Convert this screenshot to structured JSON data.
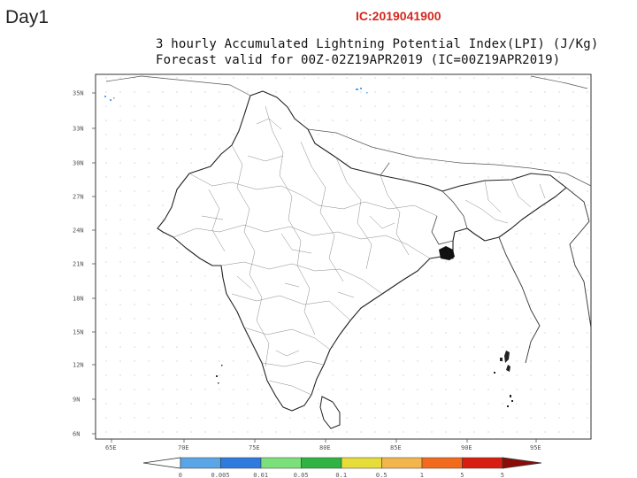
{
  "header": {
    "day": "Day1",
    "ic": "IC:2019041900"
  },
  "title": {
    "line1": "3 hourly Accumulated Lightning Potential Index(LPI) (J/Kg)",
    "line2": "Forecast valid for 00Z-02Z19APR2019 (IC=00Z19APR2019)"
  },
  "axes": {
    "lat_ticks": [
      "35N",
      "33N",
      "30N",
      "27N",
      "24N",
      "21N",
      "18N",
      "15N",
      "12N",
      "9N",
      "6N"
    ],
    "lon_ticks": [
      "65E",
      "70E",
      "75E",
      "80E",
      "85E",
      "90E",
      "95E"
    ]
  },
  "colorbar": {
    "labels": [
      "0",
      "0.005",
      "0.01",
      "0.05",
      "0.1",
      "0.5",
      "1",
      "5",
      "5"
    ],
    "colors": [
      "#5aa5e6",
      "#2e7be0",
      "#7ce07a",
      "#2fb342",
      "#e6dc3a",
      "#f3b64c",
      "#f26b1d",
      "#d81e10"
    ]
  }
}
